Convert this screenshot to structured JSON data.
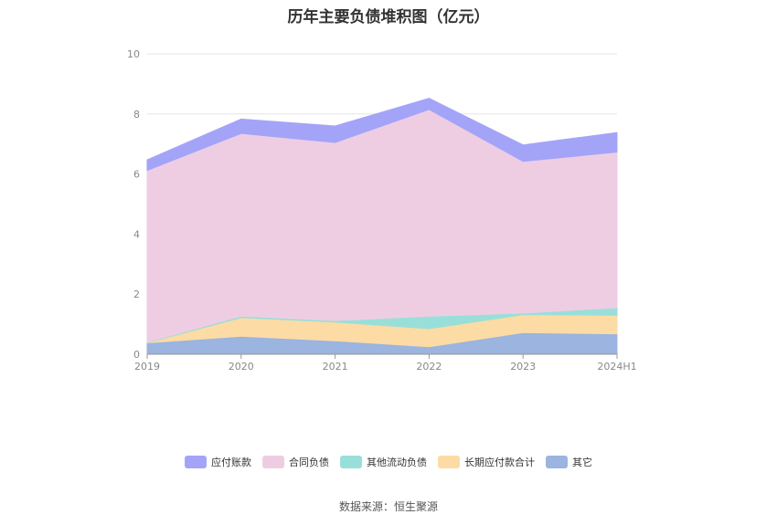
{
  "title": "历年主要负债堆积图（亿元）",
  "source": "数据来源：恒生聚源",
  "chart_data": {
    "type": "area",
    "stacked": true,
    "categories": [
      "2019",
      "2020",
      "2021",
      "2022",
      "2023",
      "2024H1"
    ],
    "ylim": [
      0,
      10
    ],
    "yticks": [
      0,
      2,
      4,
      6,
      8,
      10
    ],
    "grid": true,
    "legend_position": "bottom",
    "series": [
      {
        "name": "其它",
        "color": "#9bb4e0",
        "values": [
          0.38,
          0.6,
          0.45,
          0.25,
          0.72,
          0.68
        ]
      },
      {
        "name": "长期应付款合计",
        "color": "#fddba4",
        "values": [
          0.0,
          0.62,
          0.62,
          0.6,
          0.6,
          0.62
        ]
      },
      {
        "name": "其他流动负债",
        "color": "#99dfd9",
        "values": [
          0.02,
          0.05,
          0.05,
          0.42,
          0.05,
          0.25
        ]
      },
      {
        "name": "合同负债",
        "color": "#eecde3",
        "values": [
          5.72,
          6.08,
          5.93,
          6.88,
          5.05,
          5.18
        ]
      },
      {
        "name": "应付账款",
        "color": "#a3a4f8",
        "values": [
          0.35,
          0.48,
          0.55,
          0.37,
          0.55,
          0.65
        ]
      }
    ]
  }
}
